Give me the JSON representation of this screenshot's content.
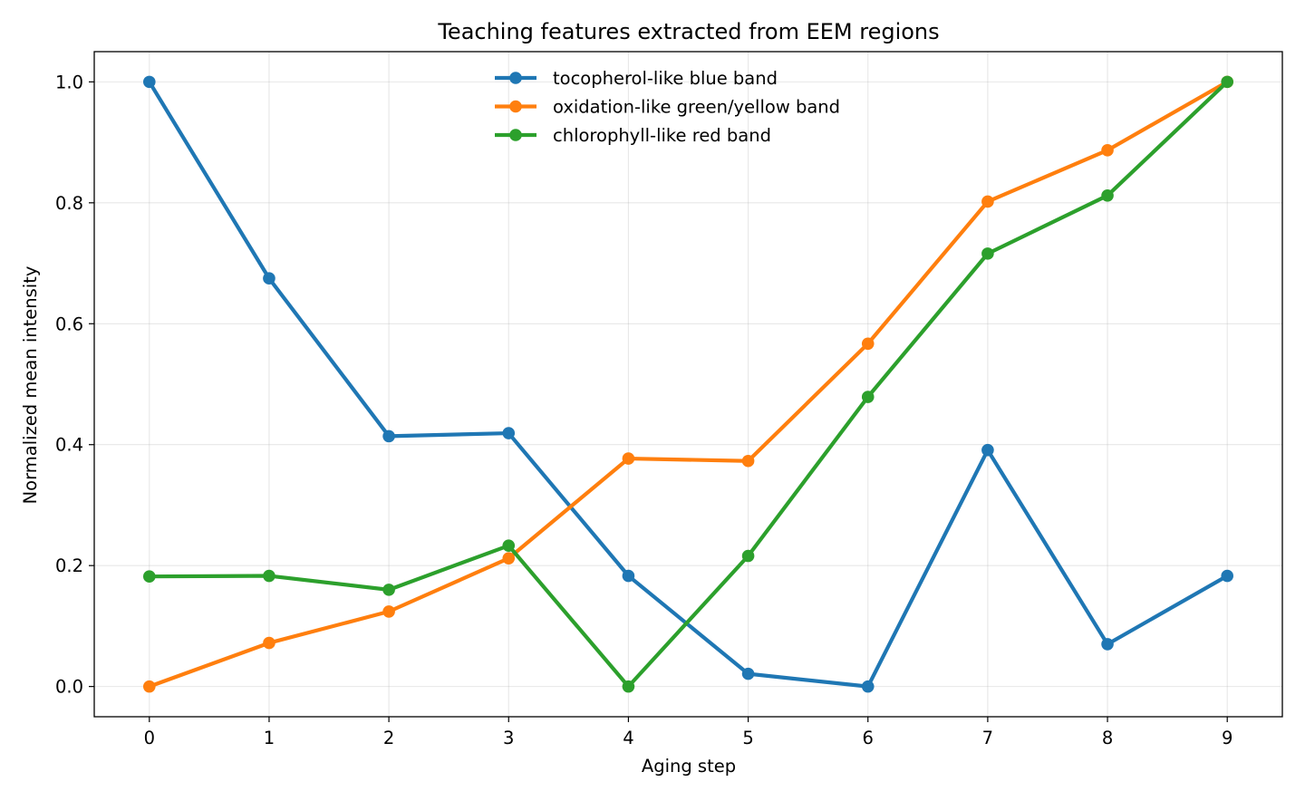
{
  "chart_data": {
    "type": "line",
    "title": "Teaching features extracted from EEM regions",
    "xlabel": "Aging step",
    "ylabel": "Normalized mean intensity",
    "x": [
      0,
      1,
      2,
      3,
      4,
      5,
      6,
      7,
      8,
      9
    ],
    "xlim": [
      -0.46,
      9.46
    ],
    "ylim": [
      -0.05,
      1.05
    ],
    "xticks": [
      0,
      1,
      2,
      3,
      4,
      5,
      6,
      7,
      8,
      9
    ],
    "yticks": [
      0.0,
      0.2,
      0.4,
      0.6,
      0.8,
      1.0
    ],
    "xtick_labels": [
      "0",
      "1",
      "2",
      "3",
      "4",
      "5",
      "6",
      "7",
      "8",
      "9"
    ],
    "ytick_labels": [
      "0.0",
      "0.2",
      "0.4",
      "0.6",
      "0.8",
      "1.0"
    ],
    "grid": true,
    "legend_position": "upper-center",
    "series": [
      {
        "name": "tocopherol-like blue band",
        "color": "#1f77b4",
        "values": [
          1.0,
          0.675,
          0.414,
          0.419,
          0.183,
          0.021,
          0.0,
          0.391,
          0.07,
          0.183
        ]
      },
      {
        "name": "oxidation-like green/yellow band",
        "color": "#ff7f0e",
        "values": [
          0.0,
          0.072,
          0.124,
          0.212,
          0.377,
          0.373,
          0.567,
          0.802,
          0.887,
          1.0
        ]
      },
      {
        "name": "chlorophyll-like red band",
        "color": "#2ca02c",
        "values": [
          0.182,
          0.183,
          0.16,
          0.233,
          0.0,
          0.216,
          0.479,
          0.716,
          0.812,
          1.0
        ]
      }
    ]
  }
}
